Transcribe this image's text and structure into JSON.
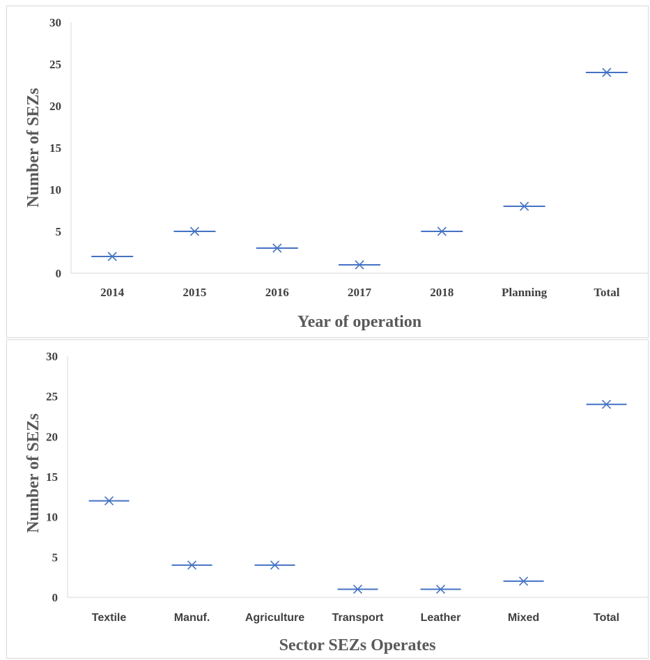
{
  "chart_data": [
    {
      "type": "scatter",
      "marker": "x with horizontal dash",
      "color": "#4472c4",
      "categories": [
        "2014",
        "2015",
        "2016",
        "2017",
        "2018",
        "Planning",
        "Total"
      ],
      "values": [
        2,
        5,
        3,
        1,
        5,
        8,
        24
      ],
      "xlabel": "Year of operation",
      "ylabel": "Number of SEZs",
      "ylim": [
        0,
        30
      ],
      "yticks": [
        "0",
        "5",
        "10",
        "15",
        "20",
        "25",
        "30"
      ],
      "grid": false
    },
    {
      "type": "scatter",
      "marker": "x with horizontal dash",
      "color": "#4472c4",
      "categories": [
        "Textile",
        "Manuf.",
        "Agriculture",
        "Transport",
        "Leather",
        "Mixed",
        "Total"
      ],
      "values": [
        12,
        4,
        4,
        1,
        1,
        2,
        24
      ],
      "xlabel": "Sector SEZs Operates",
      "ylabel": "Number of SEZs",
      "ylim": [
        0,
        30
      ],
      "yticks": [
        "0",
        "5",
        "10",
        "15",
        "20",
        "25",
        "30"
      ],
      "grid": false
    }
  ]
}
